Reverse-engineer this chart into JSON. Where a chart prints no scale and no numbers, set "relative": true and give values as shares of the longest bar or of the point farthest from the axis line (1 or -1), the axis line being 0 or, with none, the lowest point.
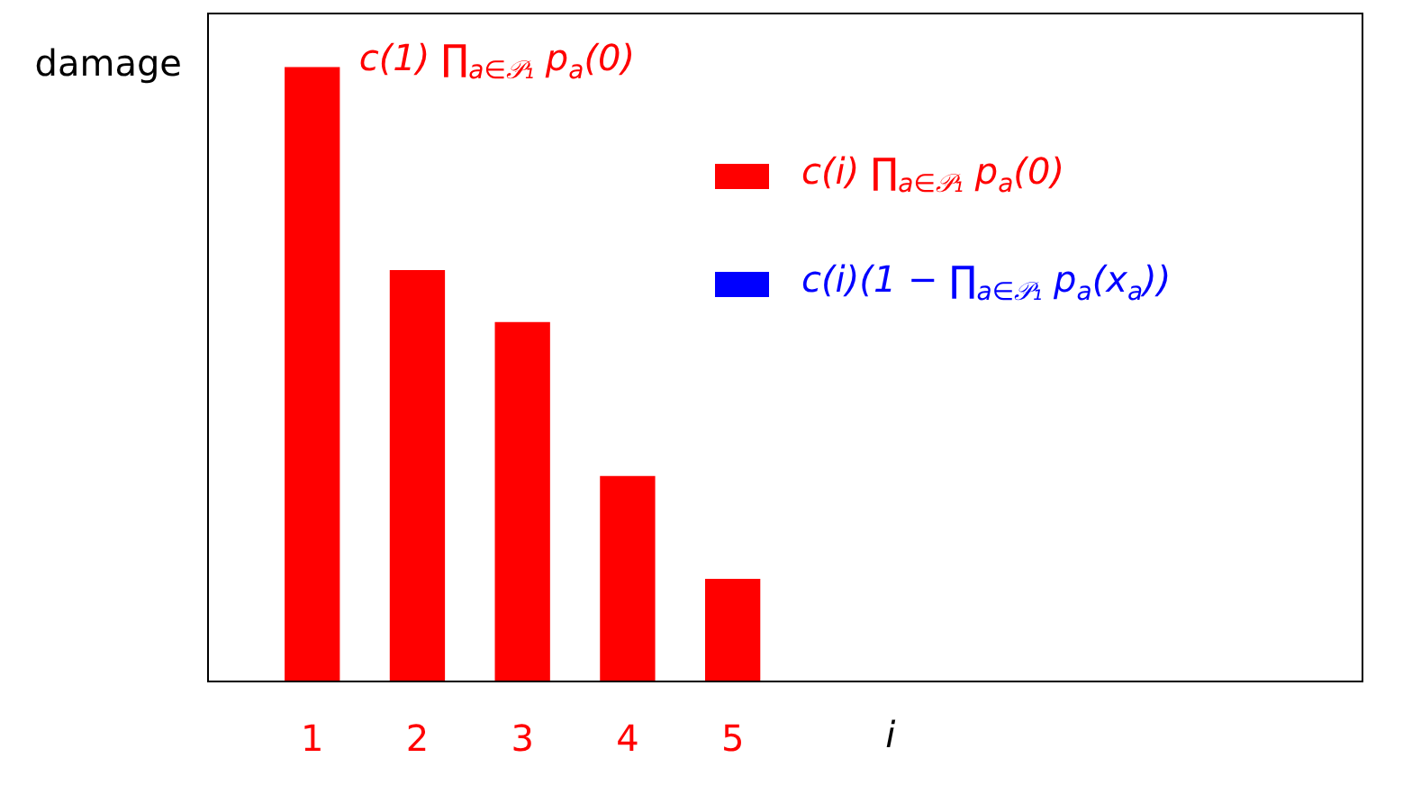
{
  "chart_data": {
    "type": "bar",
    "ylabel": "damage",
    "xlabel": "i",
    "relative": true,
    "categories": [
      null,
      "1",
      "2",
      "3",
      "4",
      "5",
      null,
      null,
      null,
      null,
      null,
      null
    ],
    "series": [
      {
        "name": "c(i) ∏$_{a∈𝒫₁}$ p$_{a}$(0)",
        "color": "#ff0000",
        "values": [
          null,
          1,
          0.669,
          0.584,
          0.333,
          0.165,
          null,
          null,
          null,
          null,
          null,
          null
        ]
      },
      {
        "name": "c(i)(1 − ∏$_{a∈𝒫₁}$ p$_{a}$(x$_{a}$))",
        "color": "#0000ff",
        "values": [
          null,
          null,
          null,
          null,
          null,
          null,
          null,
          null,
          null,
          null,
          null,
          null
        ]
      }
    ],
    "annotations": [
      "c(1) ∏$_{a∈𝒫₁}$ p$_{a}$(0)"
    ],
    "legend": "top right"
  }
}
